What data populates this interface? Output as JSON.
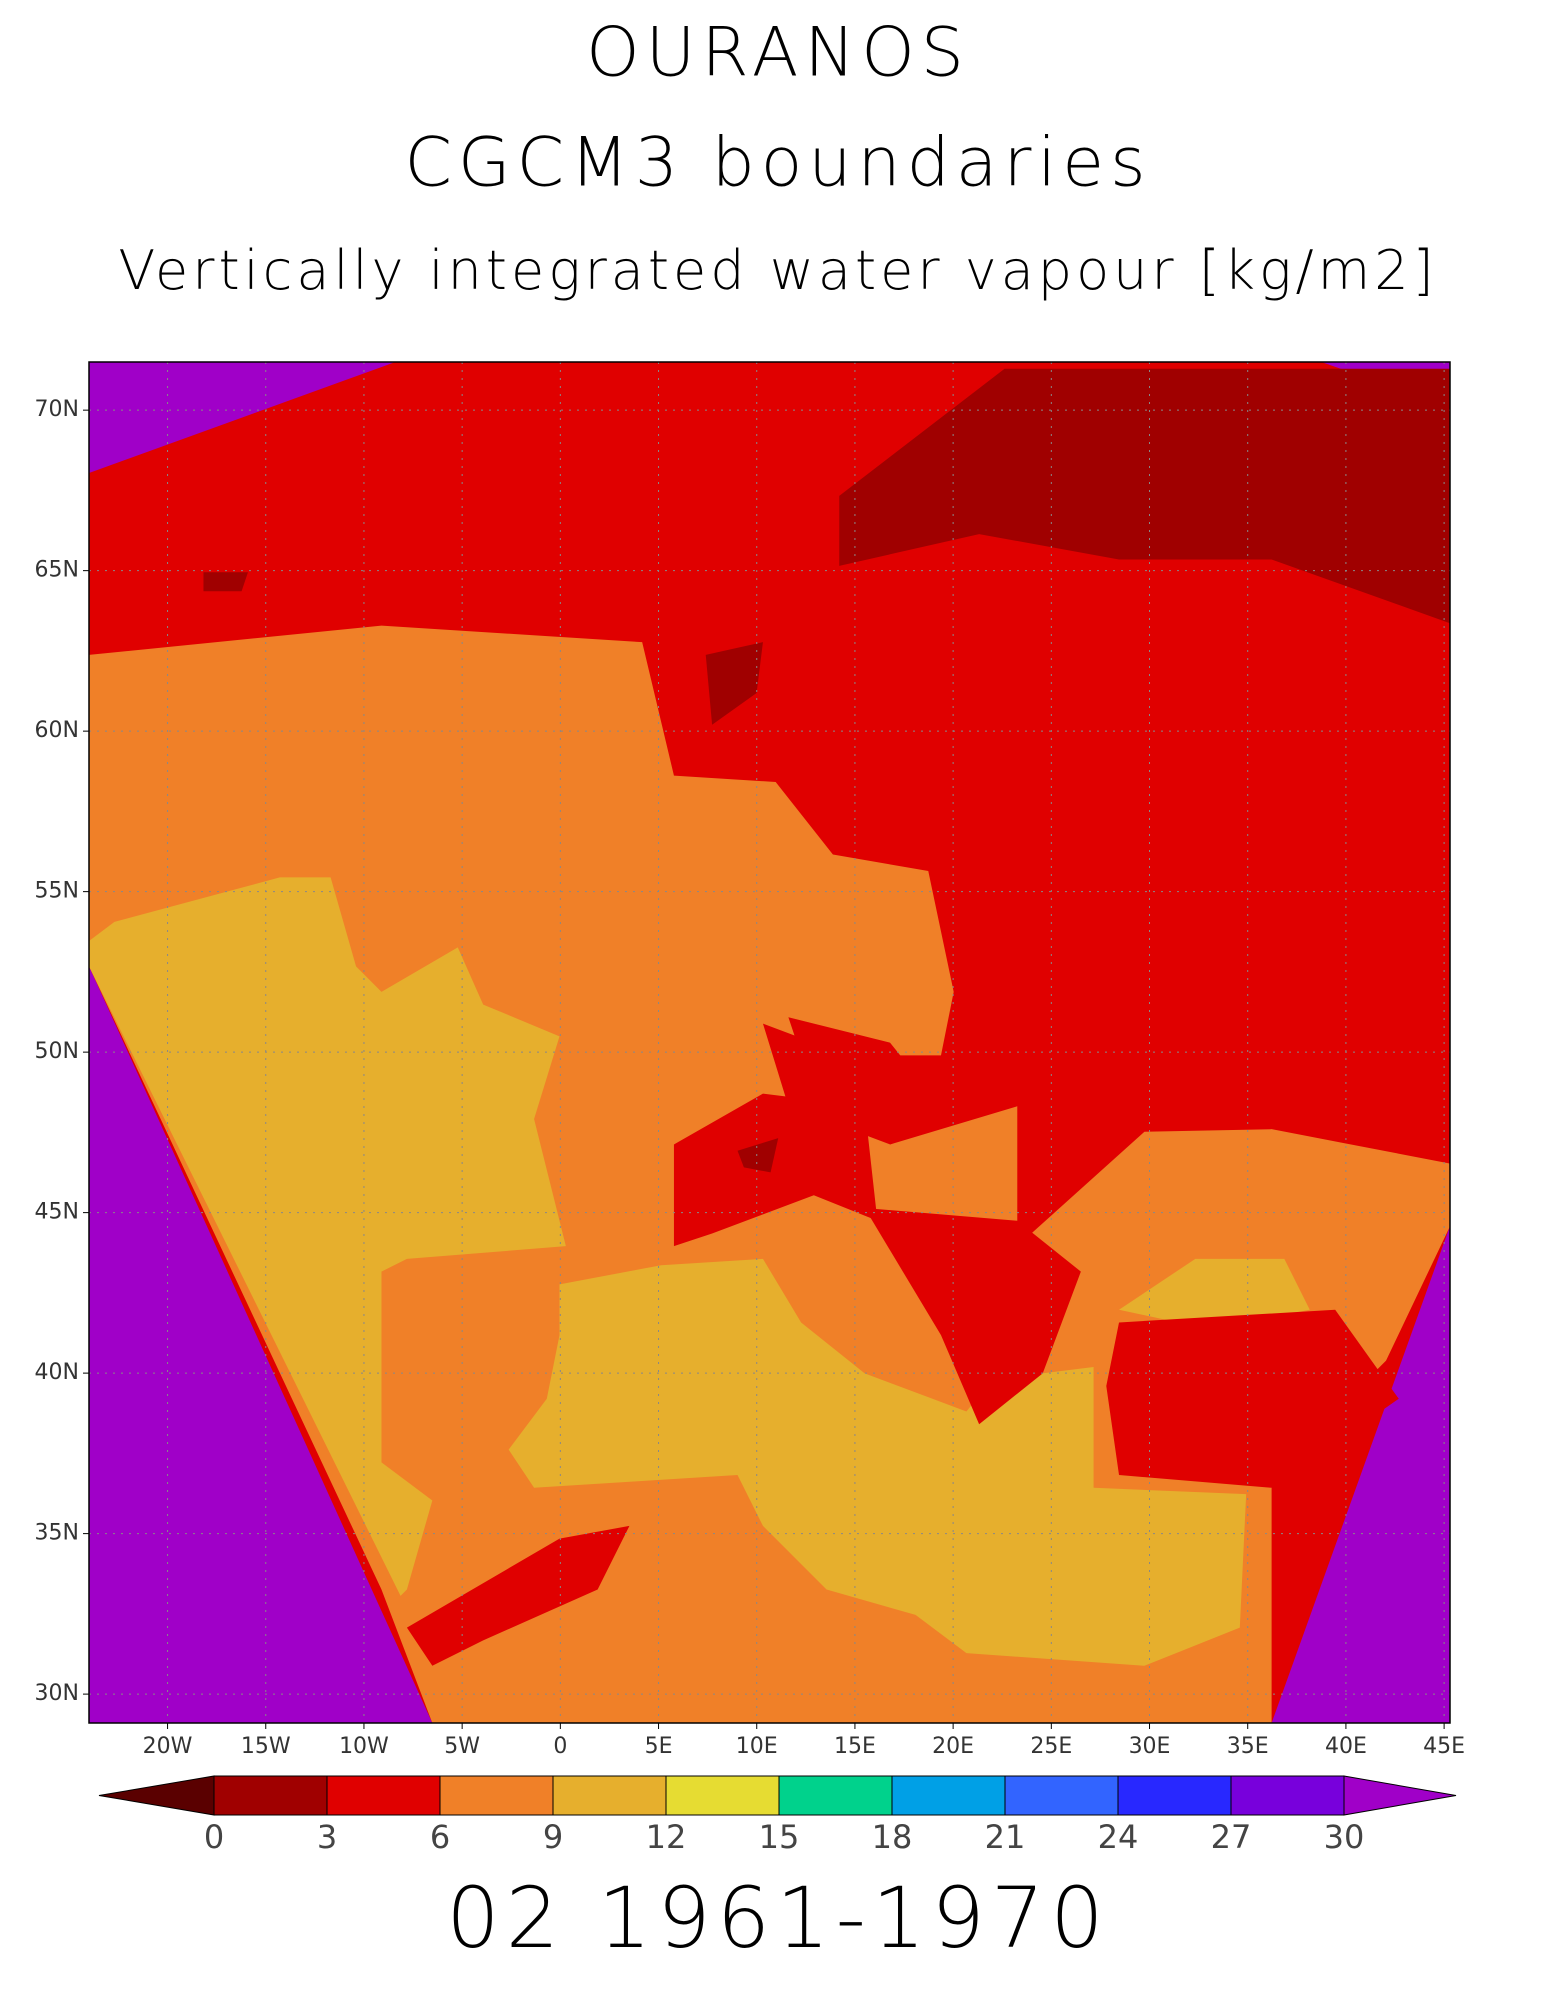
{
  "map": {
    "title": "OURANOS",
    "subtitle": "CGCM3 boundaries",
    "variable": "Vertically integrated water vapour [kg/m2]",
    "footer": "02 1961-1970",
    "xlim": [
      -24,
      45.3
    ],
    "ylim": [
      29.1,
      71.5
    ],
    "grid": true,
    "xticks": [
      {
        "value": -20,
        "label": "20W"
      },
      {
        "value": -15,
        "label": "15W"
      },
      {
        "value": -10,
        "label": "10W"
      },
      {
        "value": -5,
        "label": "5W"
      },
      0,
      {
        "value": 5,
        "label": "5E"
      },
      {
        "value": 10,
        "label": "10E"
      },
      {
        "value": 15,
        "label": "15E"
      },
      {
        "value": 20,
        "label": "20E"
      },
      {
        "value": 25,
        "label": "25E"
      },
      {
        "value": 30,
        "label": "30E"
      },
      {
        "value": 35,
        "label": "35E"
      },
      {
        "value": 40,
        "label": "40E"
      },
      {
        "value": 45,
        "label": "45E"
      }
    ],
    "yticks": [
      {
        "value": 30,
        "label": "30N"
      },
      {
        "value": 35,
        "label": "35N"
      },
      {
        "value": 40,
        "label": "40N"
      },
      {
        "value": 45,
        "label": "45N"
      },
      {
        "value": 50,
        "label": "50N"
      },
      {
        "value": 55,
        "label": "55N"
      },
      {
        "value": 60,
        "label": "60N"
      },
      {
        "value": 65,
        "label": "65N"
      },
      {
        "value": 70,
        "label": "70N"
      }
    ],
    "colorbar": {
      "levels": [
        0,
        3,
        6,
        9,
        12,
        15,
        18,
        21,
        24,
        27,
        30
      ],
      "colors": [
        "#5a0000",
        "#a00000",
        "#e00000",
        "#f08028",
        "#e6af2d",
        "#e6dc32",
        "#00d28c",
        "#00a0e6",
        "#3264ff",
        "#2828ff",
        "#7800dc",
        "#a000c8"
      ]
    }
  }
}
